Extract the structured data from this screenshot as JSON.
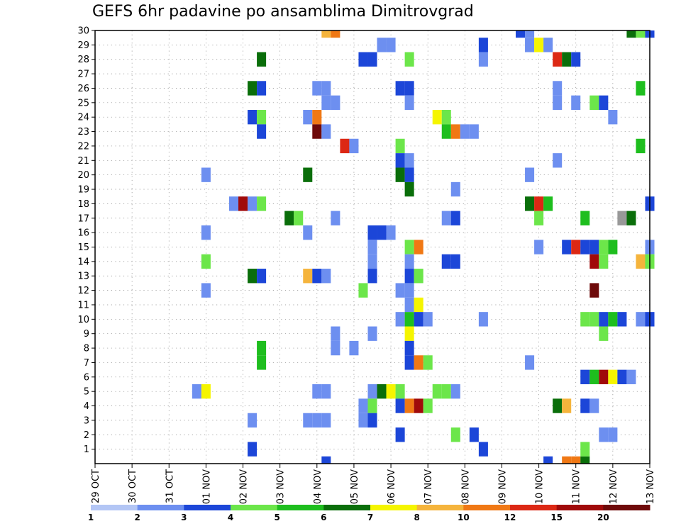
{
  "chart_data": {
    "type": "heatmap",
    "title": "GEFS 6hr padavine po ansamblima Dimitrovgrad",
    "xlabel": "",
    "ylabel": "",
    "x_tick_labels": [
      "29 OCT",
      "30 OCT",
      "31 OCT",
      "01 NOV",
      "02 NOV",
      "03 NOV",
      "04 NOV",
      "05 NOV",
      "06 NOV",
      "07 NOV",
      "08 NOV",
      "09 NOV",
      "10 NOV",
      "11 NOV",
      "12 NOV",
      "13 NOV"
    ],
    "x_range_days": [
      0,
      15
    ],
    "x_step_hours": 6,
    "y_members": [
      1,
      30
    ],
    "y_tick_labels": [
      "1",
      "2",
      "3",
      "4",
      "5",
      "6",
      "7",
      "8",
      "9",
      "10",
      "11",
      "12",
      "13",
      "14",
      "15",
      "16",
      "17",
      "18",
      "19",
      "20",
      "21",
      "22",
      "23",
      "24",
      "25",
      "26",
      "27",
      "28",
      "29",
      "30"
    ],
    "grid": "dotted",
    "colorbar": {
      "levels": [
        1,
        2,
        3,
        4,
        5,
        6,
        7,
        8,
        10,
        12,
        15,
        20
      ],
      "labels": [
        "1",
        "2",
        "3",
        "4",
        "5",
        "6",
        "7",
        "8",
        "10",
        "12",
        "15",
        "20"
      ],
      "colors": [
        "#b3c6f5",
        "#6d8ff0",
        "#1c46d8",
        "#6ce64a",
        "#1ebe1e",
        "#0a6e0a",
        "#f5f500",
        "#f5b43c",
        "#f07814",
        "#dc2814",
        "#a00a0a",
        "#6e0a0a"
      ]
    },
    "points": [
      [
        12.75,
        0,
        8
      ],
      [
        13.0,
        0,
        8
      ],
      [
        13.25,
        0,
        5
      ],
      [
        6.25,
        30,
        7
      ],
      [
        6.5,
        30,
        8
      ],
      [
        11.5,
        30,
        2
      ],
      [
        11.75,
        30,
        1
      ],
      [
        14.5,
        30,
        5
      ],
      [
        14.75,
        30,
        3
      ],
      [
        15.0,
        30,
        2
      ],
      [
        10.5,
        29,
        2
      ],
      [
        8.0,
        29,
        1
      ],
      [
        7.75,
        29,
        1
      ],
      [
        11.75,
        29,
        1
      ],
      [
        12.0,
        29,
        6
      ],
      [
        12.25,
        29,
        1
      ],
      [
        4.5,
        28,
        5
      ],
      [
        7.25,
        28,
        2
      ],
      [
        7.5,
        28,
        2
      ],
      [
        8.5,
        28,
        3
      ],
      [
        10.5,
        28,
        1
      ],
      [
        12.5,
        28,
        9
      ],
      [
        12.75,
        28,
        5
      ],
      [
        13.0,
        28,
        2
      ],
      [
        4.25,
        26,
        5
      ],
      [
        4.5,
        26,
        2
      ],
      [
        6.0,
        26,
        1
      ],
      [
        6.25,
        26,
        1
      ],
      [
        8.25,
        26,
        2
      ],
      [
        8.5,
        26,
        2
      ],
      [
        12.5,
        26,
        1
      ],
      [
        14.75,
        26,
        4
      ],
      [
        6.25,
        25,
        1
      ],
      [
        6.5,
        25,
        1
      ],
      [
        8.5,
        25,
        1
      ],
      [
        12.5,
        25,
        1
      ],
      [
        13.0,
        25,
        1
      ],
      [
        13.5,
        25,
        3
      ],
      [
        13.75,
        25,
        2
      ],
      [
        4.25,
        24,
        2
      ],
      [
        4.5,
        24,
        3
      ],
      [
        5.75,
        24,
        1
      ],
      [
        6.0,
        24,
        8
      ],
      [
        9.25,
        24,
        6
      ],
      [
        9.5,
        24,
        3
      ],
      [
        14.0,
        24,
        1
      ],
      [
        4.5,
        23,
        2
      ],
      [
        6.0,
        23,
        11
      ],
      [
        6.25,
        23,
        1
      ],
      [
        9.5,
        23,
        4
      ],
      [
        9.75,
        23,
        8
      ],
      [
        10.0,
        23,
        1
      ],
      [
        10.25,
        23,
        1
      ],
      [
        6.75,
        22,
        9
      ],
      [
        7.0,
        22,
        1
      ],
      [
        8.25,
        22,
        3
      ],
      [
        14.75,
        22,
        4
      ],
      [
        8.25,
        21,
        2
      ],
      [
        8.5,
        21,
        1
      ],
      [
        12.5,
        21,
        1
      ],
      [
        3.0,
        20,
        1
      ],
      [
        5.75,
        20,
        5
      ],
      [
        8.25,
        20,
        5
      ],
      [
        8.5,
        20,
        2
      ],
      [
        11.75,
        20,
        1
      ],
      [
        8.5,
        19,
        5
      ],
      [
        9.75,
        19,
        1
      ],
      [
        3.75,
        18,
        1
      ],
      [
        4.0,
        18,
        10
      ],
      [
        4.25,
        18,
        1
      ],
      [
        4.5,
        18,
        3
      ],
      [
        11.75,
        18,
        5
      ],
      [
        12.0,
        18,
        9
      ],
      [
        12.25,
        18,
        4
      ],
      [
        15.0,
        18,
        2
      ],
      [
        5.25,
        17,
        5
      ],
      [
        5.5,
        17,
        3
      ],
      [
        6.5,
        17,
        1
      ],
      [
        9.5,
        17,
        1
      ],
      [
        9.75,
        17,
        2
      ],
      [
        12.0,
        17,
        3
      ],
      [
        13.25,
        17,
        4
      ],
      [
        14.25,
        17,
        12
      ],
      [
        14.5,
        17,
        5
      ],
      [
        3.0,
        16,
        1
      ],
      [
        5.75,
        16,
        1
      ],
      [
        7.5,
        16,
        2
      ],
      [
        7.75,
        16,
        2
      ],
      [
        8.0,
        16,
        1
      ],
      [
        7.5,
        15,
        1
      ],
      [
        8.5,
        15,
        3
      ],
      [
        8.75,
        15,
        8
      ],
      [
        12.0,
        15,
        1
      ],
      [
        12.75,
        15,
        2
      ],
      [
        13.0,
        15,
        9
      ],
      [
        13.25,
        15,
        2
      ],
      [
        13.5,
        15,
        2
      ],
      [
        13.75,
        15,
        3
      ],
      [
        14.0,
        15,
        4
      ],
      [
        15.0,
        15,
        1
      ],
      [
        3.0,
        14,
        3
      ],
      [
        7.5,
        14,
        1
      ],
      [
        8.5,
        14,
        1
      ],
      [
        9.5,
        14,
        2
      ],
      [
        9.75,
        14,
        2
      ],
      [
        13.5,
        14,
        10
      ],
      [
        13.75,
        14,
        3
      ],
      [
        14.75,
        14,
        7
      ],
      [
        15.0,
        14,
        3
      ],
      [
        4.25,
        13,
        5
      ],
      [
        4.5,
        13,
        2
      ],
      [
        5.75,
        13,
        7
      ],
      [
        6.0,
        13,
        2
      ],
      [
        6.25,
        13,
        1
      ],
      [
        7.5,
        13,
        2
      ],
      [
        8.5,
        13,
        2
      ],
      [
        8.75,
        13,
        3
      ],
      [
        3.0,
        12,
        1
      ],
      [
        7.25,
        12,
        3
      ],
      [
        8.25,
        12,
        1
      ],
      [
        8.5,
        12,
        1
      ],
      [
        13.5,
        12,
        11
      ],
      [
        8.5,
        11,
        1
      ],
      [
        8.75,
        11,
        6
      ],
      [
        8.25,
        10,
        1
      ],
      [
        8.5,
        10,
        4
      ],
      [
        8.75,
        10,
        2
      ],
      [
        8.5,
        9,
        6
      ],
      [
        9.0,
        10,
        1
      ],
      [
        10.5,
        10,
        1
      ],
      [
        13.25,
        10,
        3
      ],
      [
        13.5,
        10,
        3
      ],
      [
        13.75,
        10,
        2
      ],
      [
        14.0,
        10,
        4
      ],
      [
        14.25,
        10,
        2
      ],
      [
        14.75,
        10,
        1
      ],
      [
        15.0,
        10,
        2
      ],
      [
        6.5,
        9,
        1
      ],
      [
        7.5,
        9,
        1
      ],
      [
        8.5,
        8,
        2
      ],
      [
        13.75,
        9,
        3
      ],
      [
        4.5,
        8,
        4
      ],
      [
        6.5,
        8,
        1
      ],
      [
        7.0,
        8,
        1
      ],
      [
        8.5,
        7,
        2
      ],
      [
        8.75,
        7,
        8
      ],
      [
        9.0,
        7,
        3
      ],
      [
        11.75,
        7,
        1
      ],
      [
        4.5,
        7,
        4
      ],
      [
        13.25,
        6,
        2
      ],
      [
        13.5,
        6,
        4
      ],
      [
        13.75,
        6,
        10
      ],
      [
        14.0,
        6,
        6
      ],
      [
        14.25,
        6,
        2
      ],
      [
        14.5,
        6,
        1
      ],
      [
        2.75,
        5,
        1
      ],
      [
        3.0,
        5,
        6
      ],
      [
        6.0,
        5,
        1
      ],
      [
        6.25,
        5,
        1
      ],
      [
        7.5,
        5,
        1
      ],
      [
        7.75,
        5,
        5
      ],
      [
        8.0,
        5,
        6
      ],
      [
        8.25,
        5,
        3
      ],
      [
        9.25,
        5,
        3
      ],
      [
        9.5,
        5,
        3
      ],
      [
        9.75,
        5,
        1
      ],
      [
        7.25,
        4,
        1
      ],
      [
        7.5,
        4,
        3
      ],
      [
        8.25,
        4,
        2
      ],
      [
        8.5,
        4,
        8
      ],
      [
        8.75,
        4,
        10
      ],
      [
        9.0,
        4,
        3
      ],
      [
        12.5,
        4,
        5
      ],
      [
        12.75,
        4,
        7
      ],
      [
        13.25,
        4,
        2
      ],
      [
        13.5,
        4,
        1
      ],
      [
        4.25,
        3,
        1
      ],
      [
        5.75,
        3,
        1
      ],
      [
        6.0,
        3,
        1
      ],
      [
        6.25,
        3,
        1
      ],
      [
        7.25,
        3,
        1
      ],
      [
        7.5,
        3,
        2
      ],
      [
        8.25,
        2,
        2
      ],
      [
        9.75,
        2,
        3
      ],
      [
        10.25,
        2,
        2
      ],
      [
        13.75,
        2,
        1
      ],
      [
        14.0,
        2,
        1
      ],
      [
        4.25,
        1,
        2
      ],
      [
        10.5,
        1,
        2
      ],
      [
        13.25,
        1,
        3
      ],
      [
        6.25,
        0,
        2
      ],
      [
        12.25,
        0,
        2
      ]
    ]
  }
}
